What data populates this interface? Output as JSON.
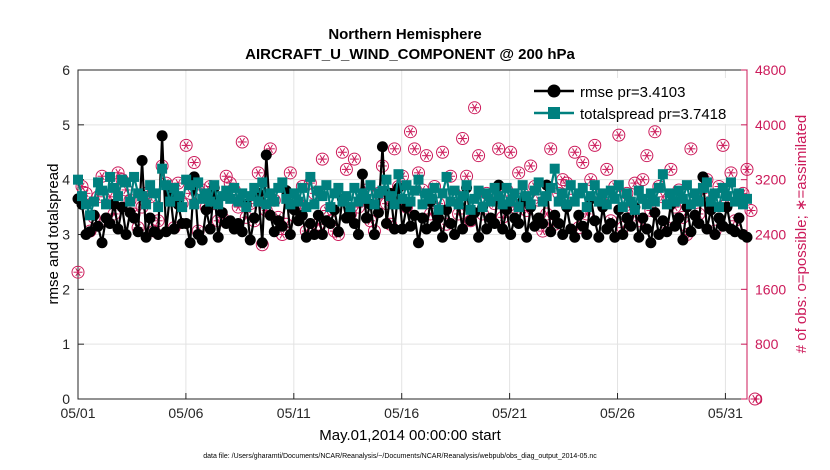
{
  "chart_data": {
    "type": "line",
    "title": "Northern Hemisphere",
    "subtitle": "AIRCRAFT_U_WIND_COMPONENT @ 200 hPa",
    "xlabel": "May.01,2014 00:00:00 start",
    "ylabel_left": "rmse and totalspread",
    "ylabel_right": "# of obs: o=possible; ∗=assimilated",
    "footnote": "data file: /Users/gharamti/Documents/NCAR/Reanalysis/~/Documents/NCAR/Reanalysis/webpub/obs_diag_output_2014-05.nc",
    "x_ticks": [
      "05/01",
      "05/06",
      "05/11",
      "05/16",
      "05/21",
      "05/26",
      "05/31"
    ],
    "x_range_days": [
      0,
      31
    ],
    "ylim_left": [
      0,
      6
    ],
    "y_ticks_left": [
      "0",
      "1",
      "2",
      "3",
      "4",
      "5",
      "6"
    ],
    "ylim_right": [
      0,
      4800
    ],
    "y_ticks_right": [
      "0",
      "800",
      "1600",
      "2400",
      "3200",
      "4000",
      "4800"
    ],
    "grid": true,
    "legend_position": "top-right",
    "colors": {
      "rmse": "#000000",
      "spread": "#00807f",
      "obs": "#cc1a5a"
    },
    "series": [
      {
        "name": "rmse pr=3.4103",
        "axis": "left",
        "values": [
          3.65,
          3.55,
          3.0,
          3.05,
          3.35,
          3.15,
          2.85,
          3.3,
          3.2,
          3.55,
          3.1,
          3.5,
          3.0,
          3.4,
          3.3,
          3.05,
          4.35,
          2.95,
          3.3,
          3.05,
          3.0,
          4.8,
          3.05,
          3.75,
          3.1,
          3.55,
          3.2,
          3.2,
          2.85,
          4.05,
          3.0,
          2.9,
          3.45,
          3.1,
          3.85,
          2.95,
          3.4,
          3.2,
          3.25,
          3.1,
          3.2,
          3.05,
          3.55,
          2.9,
          3.3,
          3.75,
          2.85,
          4.45,
          3.35,
          3.05,
          3.25,
          3.15,
          3.8,
          3.0,
          3.45,
          3.25,
          3.35,
          2.95,
          3.2,
          3.0,
          3.35,
          3.0,
          3.25,
          3.2,
          3.45,
          3.05,
          3.65,
          3.3,
          3.35,
          3.2,
          3.0,
          4.1,
          3.3,
          3.55,
          3.0,
          3.4,
          4.6,
          3.2,
          3.75,
          3.1,
          3.85,
          3.1,
          3.5,
          3.15,
          3.35,
          2.85,
          3.3,
          3.1,
          3.6,
          3.15,
          3.3,
          2.95,
          3.45,
          3.2,
          3.0,
          3.55,
          3.1,
          3.85,
          3.25,
          3.4,
          2.95,
          3.5,
          3.1,
          3.3,
          3.2,
          3.9,
          3.1,
          3.45,
          3.0,
          3.3,
          3.2,
          3.6,
          2.95,
          3.5,
          3.15,
          3.3,
          3.2,
          3.9,
          3.05,
          3.35,
          3.2,
          3.0,
          3.5,
          3.1,
          2.95,
          3.35,
          3.15,
          3.0,
          3.65,
          3.25,
          2.95,
          3.5,
          3.1,
          3.2,
          2.95,
          3.45,
          3.0,
          3.3,
          3.15,
          3.5,
          2.95,
          3.3,
          3.1,
          2.85,
          3.4,
          3.0,
          3.25,
          3.05,
          3.55,
          3.15,
          3.3,
          2.9,
          3.5,
          3.05,
          3.35,
          3.2,
          4.05,
          3.1,
          3.45,
          3.0,
          3.3,
          3.15,
          3.5,
          3.1,
          3.05,
          3.3,
          3.0,
          2.95
        ]
      },
      {
        "name": "totalspread pr=3.7418",
        "axis": "left",
        "values": [
          4.0,
          3.7,
          3.55,
          3.35,
          3.6,
          3.95,
          3.8,
          3.55,
          4.05,
          3.85,
          3.7,
          4.0,
          3.95,
          3.6,
          4.05,
          3.75,
          3.7,
          3.55,
          3.9,
          3.75,
          3.5,
          4.2,
          3.9,
          3.6,
          3.85,
          3.7,
          3.5,
          4.0,
          3.9,
          3.55,
          3.95,
          3.65,
          3.75,
          3.6,
          3.9,
          3.55,
          3.7,
          3.8,
          3.65,
          3.85,
          3.6,
          3.75,
          3.5,
          3.7,
          3.85,
          3.6,
          3.95,
          3.55,
          3.75,
          3.6,
          3.85,
          3.95,
          3.65,
          3.55,
          3.75,
          3.6,
          3.85,
          3.5,
          4.05,
          3.55,
          3.8,
          3.7,
          3.9,
          3.5,
          3.75,
          3.85,
          3.6,
          3.7,
          3.5,
          3.85,
          3.6,
          3.75,
          3.65,
          3.9,
          3.55,
          3.75,
          3.8,
          4.0,
          3.7,
          3.55,
          4.1,
          3.65,
          3.9,
          3.6,
          3.8,
          4.0,
          3.55,
          3.75,
          3.65,
          3.85,
          3.45,
          3.75,
          4.05,
          3.6,
          3.8,
          3.55,
          3.7,
          3.9,
          3.45,
          3.65,
          3.8,
          3.5,
          3.75,
          3.6,
          3.85,
          3.7,
          3.55,
          3.85,
          3.6,
          3.75,
          3.5,
          3.9,
          3.7,
          3.55,
          3.8,
          3.95,
          3.6,
          3.7,
          3.85,
          4.2,
          3.6,
          3.75,
          3.55,
          3.9,
          3.6,
          3.75,
          3.85,
          3.5,
          3.7,
          3.9,
          3.6,
          3.75,
          3.55,
          3.8,
          3.65,
          3.9,
          3.5,
          3.75,
          3.6,
          3.45,
          3.8,
          3.65,
          3.55,
          3.75,
          3.6,
          3.85,
          4.1,
          3.55,
          3.75,
          3.6,
          3.8,
          3.65,
          3.9,
          3.55,
          3.75,
          3.6,
          3.85,
          3.95,
          3.6,
          3.75,
          3.5,
          3.85,
          3.7,
          3.95,
          3.6,
          3.75,
          3.55,
          3.65
        ]
      },
      {
        "name": "possible",
        "axis": "right",
        "values": [
          1850,
          3100,
          3000,
          2450,
          2650,
          2950,
          3250,
          2600,
          2950,
          2700,
          3300,
          3200,
          3050,
          2900,
          2700,
          2500,
          2800,
          3000,
          2950,
          2450,
          2600,
          3400,
          3150,
          3000,
          2500,
          3150,
          2850,
          3700,
          3000,
          3450,
          2450,
          3050,
          2800,
          3100,
          2850,
          2600,
          2650,
          3250,
          3150,
          3050,
          2800,
          3750,
          2650,
          2850,
          2600,
          3300,
          2250,
          2750,
          3650,
          2900,
          2650,
          2400,
          2550,
          3300,
          2800,
          2850,
          3100,
          2450,
          3150,
          3000,
          2550,
          3500,
          2750,
          2600,
          2450,
          2400,
          3600,
          3350,
          2700,
          3500,
          2800,
          2900,
          3050,
          2600,
          2450,
          3000,
          3400,
          2850,
          2550,
          3650,
          3100,
          3250,
          2800,
          3900,
          3650,
          3300,
          3050,
          3550,
          2700,
          3100,
          2850,
          3600,
          2550,
          3250,
          3000,
          2700,
          3800,
          3250,
          2600,
          4250,
          3550,
          2700,
          3000,
          2950,
          2850,
          3650,
          2650,
          3050,
          3600,
          2800,
          3300,
          3000,
          2750,
          3400,
          3100,
          2900,
          2450,
          2700,
          3650,
          2550,
          3000,
          3200,
          3150,
          2900,
          3600,
          2500,
          3450,
          2700,
          3200,
          3700,
          2950,
          2850,
          3350,
          2600,
          3100,
          3850,
          2500,
          3000,
          2800,
          3150,
          2600,
          3200,
          3550,
          2750,
          3900,
          3100,
          2950,
          2500,
          3350,
          2800,
          3050,
          2650,
          2400,
          3650,
          2950,
          2700,
          3000,
          3200,
          2800,
          2450,
          3100,
          3700,
          2850,
          3300,
          2600,
          2900,
          3000,
          3350,
          2750,
          0
        ]
      },
      {
        "name": "assimilated",
        "axis": "right",
        "values": [
          1850,
          3100,
          3000,
          2450,
          2650,
          2950,
          3250,
          2600,
          2950,
          2700,
          3300,
          3200,
          3050,
          2900,
          2700,
          2500,
          2800,
          3000,
          2950,
          2450,
          2600,
          3400,
          3150,
          3000,
          2500,
          3150,
          2850,
          3700,
          3000,
          3450,
          2450,
          3050,
          2800,
          3100,
          2850,
          2600,
          2650,
          3250,
          3150,
          3050,
          2800,
          3750,
          2650,
          2850,
          2600,
          3300,
          2250,
          2750,
          3650,
          2900,
          2650,
          2400,
          2550,
          3300,
          2800,
          2850,
          3100,
          2450,
          3150,
          3000,
          2550,
          3500,
          2750,
          2600,
          2450,
          2400,
          3600,
          3350,
          2700,
          3500,
          2800,
          2900,
          3050,
          2600,
          2450,
          3000,
          3400,
          2850,
          2550,
          3650,
          3100,
          3250,
          2800,
          3900,
          3650,
          3300,
          3050,
          3550,
          2700,
          3100,
          2850,
          3600,
          2550,
          3250,
          3000,
          2700,
          3800,
          3250,
          2600,
          4250,
          3550,
          2700,
          3000,
          2950,
          2850,
          3650,
          2650,
          3050,
          3600,
          2800,
          3300,
          3000,
          2750,
          3400,
          3100,
          2900,
          2450,
          2700,
          3650,
          2550,
          3000,
          3200,
          3150,
          2900,
          3600,
          2500,
          3450,
          2700,
          3200,
          3700,
          2950,
          2850,
          3350,
          2600,
          3100,
          3850,
          2500,
          3000,
          2800,
          3150,
          2600,
          3200,
          3550,
          2750,
          3900,
          3100,
          2950,
          2500,
          3350,
          2800,
          3050,
          2650,
          2400,
          3650,
          2950,
          2700,
          3000,
          3200,
          2800,
          2450,
          3100,
          3700,
          2850,
          3300,
          2600,
          2900,
          3000,
          3350,
          2750,
          0
        ]
      }
    ]
  }
}
